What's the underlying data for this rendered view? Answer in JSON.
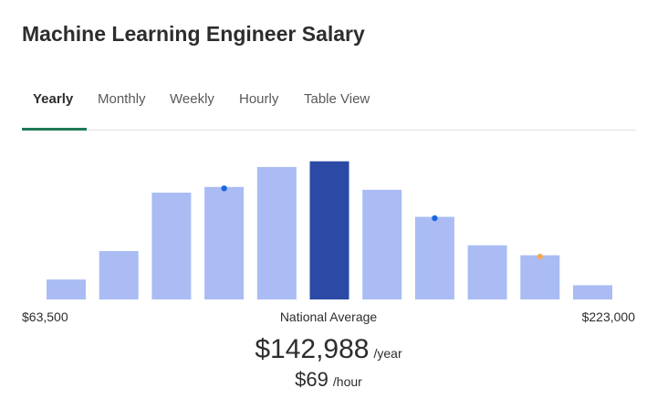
{
  "header": {
    "title": "Machine Learning Engineer Salary"
  },
  "tabs": [
    {
      "label": "Yearly",
      "active": true
    },
    {
      "label": "Monthly",
      "active": false
    },
    {
      "label": "Weekly",
      "active": false
    },
    {
      "label": "Hourly",
      "active": false
    },
    {
      "label": "Table View",
      "active": false
    }
  ],
  "colors": {
    "bar": "#aabcf3",
    "bar_highlight": "#2b4aa5",
    "tab_accent": "#1f7a56",
    "marker_blue": "#1a66e0",
    "marker_orange": "#f5a95b"
  },
  "chart_data": {
    "type": "bar",
    "description_range": [
      "$63,500",
      "$223,000"
    ],
    "values": [
      14,
      34,
      75,
      79,
      93,
      97,
      77,
      58,
      38,
      31,
      10
    ],
    "highlight_index": 5,
    "markers": [
      {
        "bar": 3,
        "color": "blue"
      },
      {
        "bar": 7,
        "color": "blue"
      },
      {
        "bar": 9,
        "color": "orange"
      }
    ],
    "ylim": [
      0,
      100
    ]
  },
  "range": {
    "min": "$63,500",
    "max": "$223,000"
  },
  "national_average": {
    "label": "National Average",
    "yearly_value": "$142,988",
    "yearly_unit": "/year",
    "hourly_value": "$69",
    "hourly_unit": "/hour"
  }
}
